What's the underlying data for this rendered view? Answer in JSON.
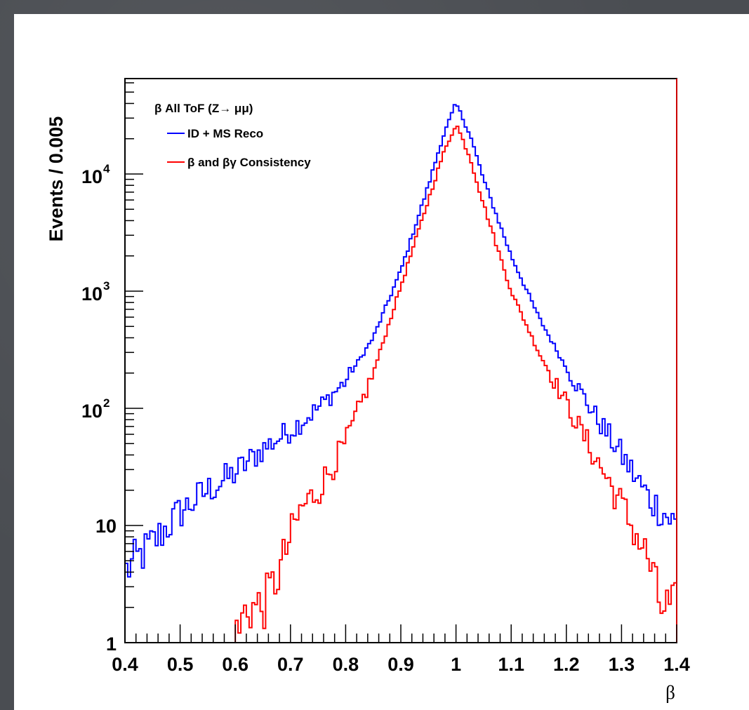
{
  "chart_data": {
    "type": "line",
    "title": "",
    "xlabel": "β",
    "ylabel": "Events / 0.005",
    "xlim": [
      0.4,
      1.4
    ],
    "ylim": [
      1,
      100000
    ],
    "yscale": "log",
    "x_tick_labels": [
      "0.4",
      "0.5",
      "0.6",
      "0.7",
      "0.8",
      "0.9",
      "1",
      "1.1",
      "1.2",
      "1.3",
      "1.4"
    ],
    "y_tick_labels": [
      {
        "value": 1,
        "text": "1"
      },
      {
        "value": 10,
        "text": "10"
      },
      {
        "value": 100,
        "base": "10",
        "exp": "2"
      },
      {
        "value": 1000,
        "base": "10",
        "exp": "3"
      },
      {
        "value": 10000,
        "base": "10",
        "exp": "4"
      }
    ],
    "legend_title": "β All ToF (Z→ μμ)",
    "legend_placement": "top-left",
    "grid": false,
    "series": [
      {
        "name": "ID + MS Reco",
        "color": "#0000ff",
        "x": [
          0.4,
          0.45,
          0.5,
          0.55,
          0.6,
          0.65,
          0.7,
          0.75,
          0.8,
          0.85,
          0.9,
          0.95,
          0.975,
          1.0,
          1.025,
          1.05,
          1.1,
          1.15,
          1.2,
          1.25,
          1.3,
          1.35,
          1.4
        ],
        "y": [
          4,
          7,
          13,
          20,
          28,
          45,
          65,
          100,
          170,
          400,
          1500,
          8000,
          20000,
          40000,
          22000,
          9000,
          2000,
          600,
          220,
          90,
          40,
          17,
          10
        ]
      },
      {
        "name": "β and βγ Consistency",
        "color": "#ff0000",
        "x": [
          0.4,
          0.6,
          0.62,
          0.65,
          0.68,
          0.7,
          0.72,
          0.75,
          0.8,
          0.85,
          0.9,
          0.95,
          0.975,
          1.0,
          1.025,
          1.05,
          1.1,
          1.15,
          1.2,
          1.25,
          1.3,
          1.35,
          1.37,
          1.4
        ],
        "y": [
          1,
          1,
          2,
          2,
          4,
          8,
          14,
          20,
          50,
          200,
          1100,
          6000,
          14000,
          27000,
          14000,
          5500,
          1000,
          300,
          110,
          40,
          15,
          5,
          2,
          2
        ]
      }
    ]
  }
}
